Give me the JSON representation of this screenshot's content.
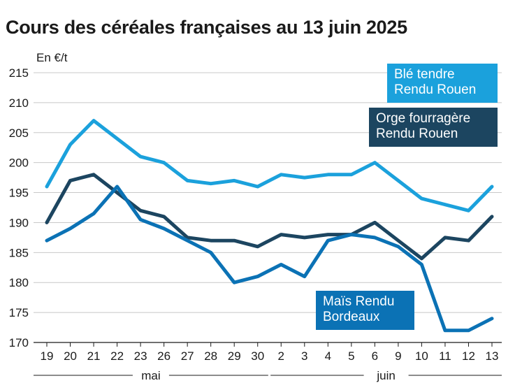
{
  "title": "Cours des céréales françaises au 13 juin 2025",
  "chart_data": {
    "type": "line",
    "unit": "En €/t",
    "categories": [
      "19",
      "20",
      "21",
      "22",
      "23",
      "26",
      "27",
      "28",
      "29",
      "30",
      "2",
      "3",
      "4",
      "5",
      "6",
      "9",
      "10",
      "11",
      "12",
      "13"
    ],
    "months": [
      {
        "label": "mai",
        "from": "19",
        "to": "30"
      },
      {
        "label": "juin",
        "from": "2",
        "to": "13"
      }
    ],
    "ylim": [
      170,
      215
    ],
    "yticks": [
      170,
      175,
      180,
      185,
      190,
      195,
      200,
      205,
      210,
      215
    ],
    "grid": true,
    "series": [
      {
        "name_lines": [
          "Blé tendre",
          "Rendu Rouen"
        ],
        "color": "#1ba1dc",
        "values": [
          196,
          203,
          207,
          204,
          201,
          200,
          197,
          196.5,
          197,
          196,
          198,
          197.5,
          198,
          198,
          200,
          197,
          194,
          193,
          192,
          196
        ]
      },
      {
        "name_lines": [
          "Orge fourragère",
          "Rendu Rouen"
        ],
        "color": "#1c4560",
        "values": [
          190,
          197,
          198,
          195,
          192,
          191,
          187.5,
          187,
          187,
          186,
          188,
          187.5,
          188,
          188,
          190,
          187,
          184,
          187.5,
          187,
          191
        ]
      },
      {
        "name_lines": [
          "Maïs Rendu",
          "Bordeaux"
        ],
        "color": "#0b72b5",
        "values": [
          187,
          189,
          191.5,
          196,
          190.5,
          189,
          187,
          185,
          180,
          181,
          183,
          181,
          187,
          188,
          187.5,
          186,
          183,
          172,
          172,
          174
        ]
      }
    ]
  }
}
